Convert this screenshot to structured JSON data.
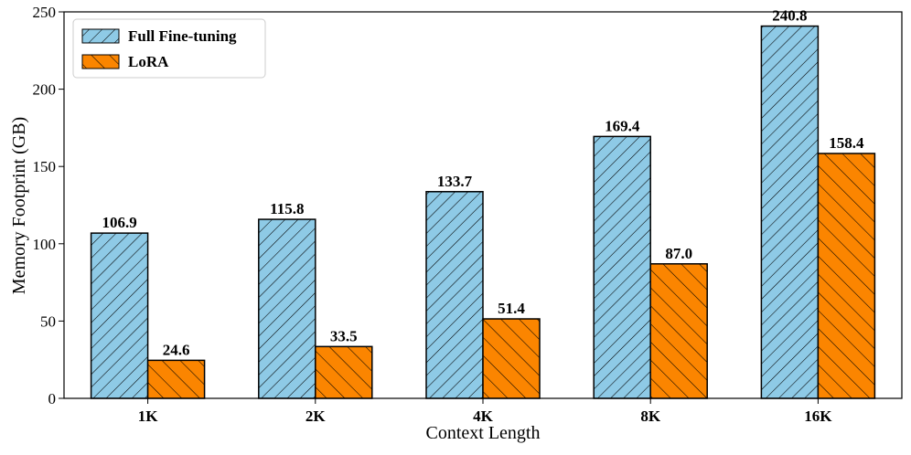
{
  "chart_data": {
    "type": "bar",
    "categories": [
      "1K",
      "2K",
      "4K",
      "8K",
      "16K"
    ],
    "series": [
      {
        "name": "Full Fine-tuning",
        "values": [
          106.9,
          115.8,
          133.7,
          169.4,
          240.8
        ],
        "labels": [
          "106.9",
          "115.8",
          "133.7",
          "169.4",
          "240.8"
        ],
        "color": "#8ecae6",
        "hatch": "forward-diagonal"
      },
      {
        "name": "LoRA",
        "values": [
          24.6,
          33.5,
          51.4,
          87.0,
          158.4
        ],
        "labels": [
          "24.6",
          "33.5",
          "51.4",
          "87.0",
          "158.4"
        ],
        "color": "#fb8500",
        "hatch": "backward-diagonal"
      }
    ],
    "xlabel": "Context Length",
    "ylabel": "Memory Footprint (GB)",
    "ylim": [
      0,
      250
    ],
    "yticks": [
      0,
      50,
      100,
      150,
      200,
      250
    ],
    "grid": false,
    "legend_position": "top-left"
  }
}
